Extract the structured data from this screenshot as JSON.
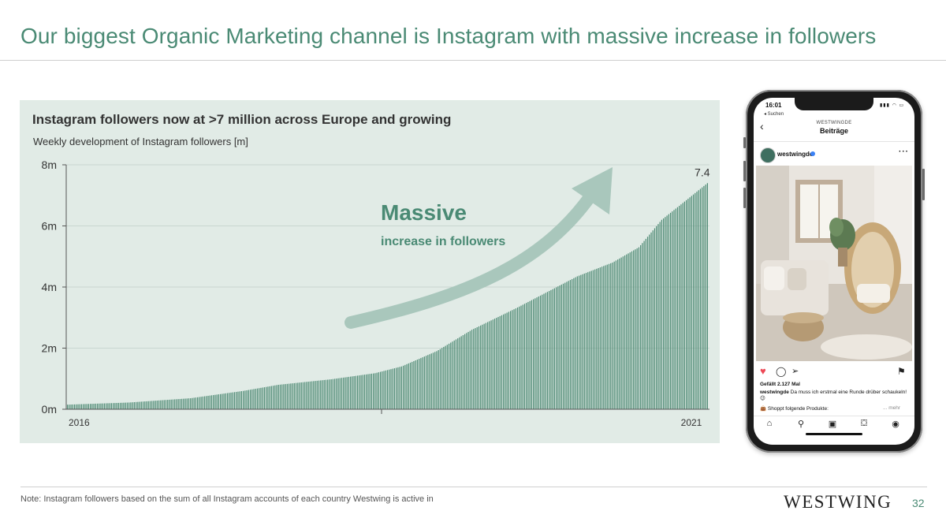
{
  "slide": {
    "title": "Our biggest Organic Marketing channel is Instagram with massive increase in followers",
    "note": "Note: Instagram followers based on the sum of all Instagram accounts of each country Westwing is active in",
    "logo": "WESTWING",
    "page_number": "32"
  },
  "colors": {
    "accent": "#4a8a74",
    "bar": "#4e8a74",
    "panel_bg": "#e1ebe6",
    "arrow": "#a9c7bc"
  },
  "chart_data": {
    "type": "bar",
    "title": "Instagram followers now at >7 million across Europe and growing",
    "subtitle": "Weekly development of Instagram followers [m]",
    "xlabel": "",
    "ylabel": "",
    "ylim": [
      0,
      8
    ],
    "yticks": [
      "0m",
      "2m",
      "4m",
      "6m",
      "8m"
    ],
    "x_start_label": "2016",
    "x_end_label": "2021",
    "frequency": "weekly",
    "anchors": [
      {
        "week": 0,
        "value": 0.15
      },
      {
        "week": 35,
        "value": 0.22
      },
      {
        "week": 70,
        "value": 0.36
      },
      {
        "week": 100,
        "value": 0.6
      },
      {
        "week": 120,
        "value": 0.8
      },
      {
        "week": 150,
        "value": 0.98
      },
      {
        "week": 175,
        "value": 1.18
      },
      {
        "week": 190,
        "value": 1.4
      },
      {
        "week": 210,
        "value": 1.9
      },
      {
        "week": 230,
        "value": 2.6
      },
      {
        "week": 255,
        "value": 3.3
      },
      {
        "week": 275,
        "value": 3.9
      },
      {
        "week": 290,
        "value": 4.35
      },
      {
        "week": 310,
        "value": 4.8
      },
      {
        "week": 325,
        "value": 5.3
      },
      {
        "week": 338,
        "value": 6.2
      },
      {
        "week": 350,
        "value": 6.75
      },
      {
        "week": 364,
        "value": 7.4
      }
    ],
    "last_value_label": "7.4",
    "annotation": {
      "headline": "Massive",
      "text": "increase in followers"
    }
  },
  "phone": {
    "status_time": "16:01",
    "status_back": "◂ Suchen",
    "status_icons": "▮▮▮ ◠ ▭",
    "brand": "WESTWINGDE",
    "screen_title": "Beiträge",
    "username": "westwingde",
    "more_dots": "···",
    "likes": "Gefällt 2.127 Mal",
    "caption_user": "westwingde",
    "caption_text": "Da muss ich erstmal eine Runde drüber schaukeln! 😉",
    "shop_text": "👜 Shoppt folgende Produkte:",
    "more_link": "... mehr",
    "icons": {
      "back": "‹",
      "heart": "♥",
      "comment": "◯",
      "share": "➢",
      "save": "⚑",
      "home": "⌂",
      "search": "⚲",
      "reels": "▣",
      "shop": "⛋",
      "profile": "◉"
    }
  }
}
